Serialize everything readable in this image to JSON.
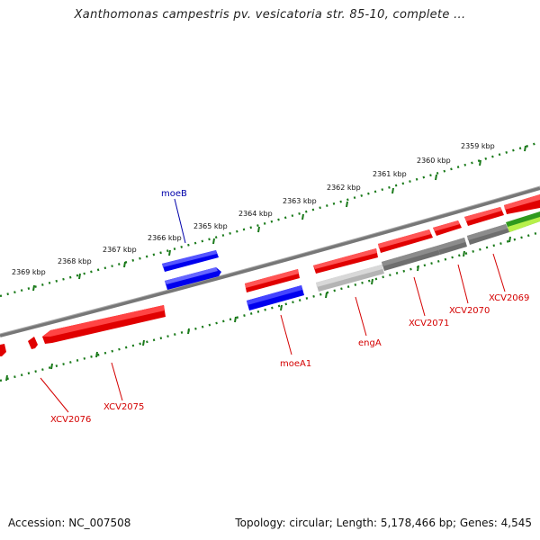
{
  "header": {
    "title": "Xanthomonas campestris pv. vesicatoria str. 85-10, complete ..."
  },
  "footer": {
    "accession": "Accession: NC_007508",
    "topology": "Topology: circular; Length: 5,178,466 bp; Genes: 4,545"
  },
  "colors": {
    "forward_gene": "#ff0000",
    "reverse_gene": "#e00000",
    "selected_gene": "#0000ee",
    "pseudo_gene": "#6e6e6e",
    "trna_gene": "#33bb22",
    "backbone": "#777777",
    "ruler": "#1a7a1a",
    "label_red": "#d40000",
    "label_blue": "#0000aa"
  },
  "ruler_labels": [
    {
      "text": "2369 kbp"
    },
    {
      "text": "2368 kbp"
    },
    {
      "text": "2367 kbp"
    },
    {
      "text": "2366 kbp"
    },
    {
      "text": "2365 kbp"
    },
    {
      "text": "2364 kbp"
    },
    {
      "text": "2363 kbp"
    },
    {
      "text": "2362 kbp"
    },
    {
      "text": "2361 kbp"
    },
    {
      "text": "2360 kbp"
    },
    {
      "text": "2359 kbp"
    }
  ],
  "gene_labels": {
    "moeB": "moeB",
    "moeA1": "moeA1",
    "engA": "engA",
    "XCV2069": "XCV2069",
    "XCV2070": "XCV2070",
    "XCV2071": "XCV2071",
    "XCV2075": "XCV2075",
    "XCV2076": "XCV2076"
  }
}
